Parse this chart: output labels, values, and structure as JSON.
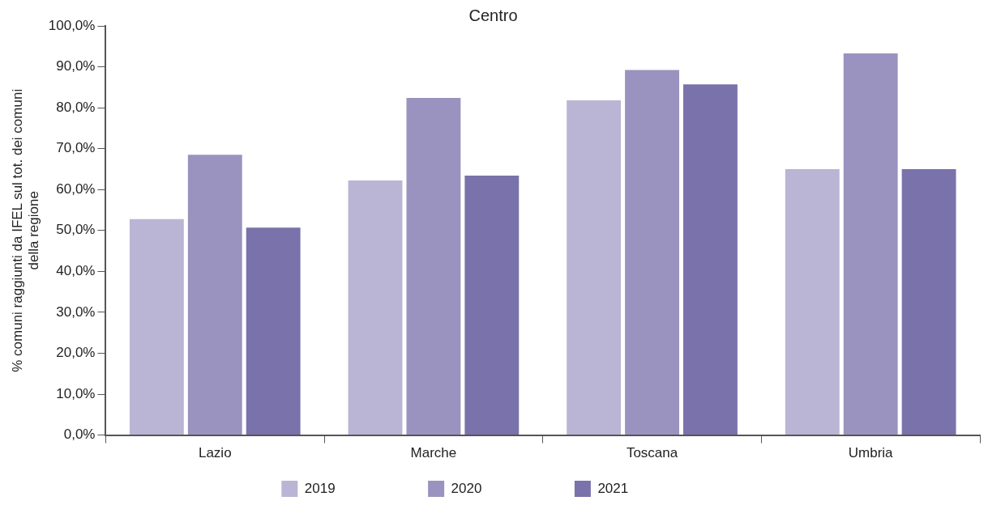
{
  "chart_data": {
    "type": "bar",
    "title": "Centro",
    "ylabel": "% comuni raggiunti da IFEL sul tot. dei comuni della regione",
    "categories": [
      "Lazio",
      "Marche",
      "Toscana",
      "Umbria"
    ],
    "series": [
      {
        "name": "2019",
        "color": "#bab5d4",
        "values": [
          52.8,
          62.2,
          81.8,
          65.0
        ]
      },
      {
        "name": "2020",
        "color": "#9a93bf",
        "values": [
          68.5,
          82.4,
          89.2,
          93.3
        ]
      },
      {
        "name": "2021",
        "color": "#7a72aa",
        "values": [
          50.7,
          63.4,
          85.7,
          65.0
        ]
      }
    ],
    "ylim": [
      0,
      100
    ],
    "yticks": [
      {
        "value": 0,
        "label": "0,0%"
      },
      {
        "value": 10,
        "label": "10,0%"
      },
      {
        "value": 20,
        "label": "20,0%"
      },
      {
        "value": 30,
        "label": "30,0%"
      },
      {
        "value": 40,
        "label": "40,0%"
      },
      {
        "value": 50,
        "label": "50,0%"
      },
      {
        "value": 60,
        "label": "60,0%"
      },
      {
        "value": 70,
        "label": "70,0%"
      },
      {
        "value": 80,
        "label": "80,0%"
      },
      {
        "value": 90,
        "label": "90,0%"
      },
      {
        "value": 100,
        "label": "100,0%"
      }
    ],
    "legend": "bottom"
  }
}
